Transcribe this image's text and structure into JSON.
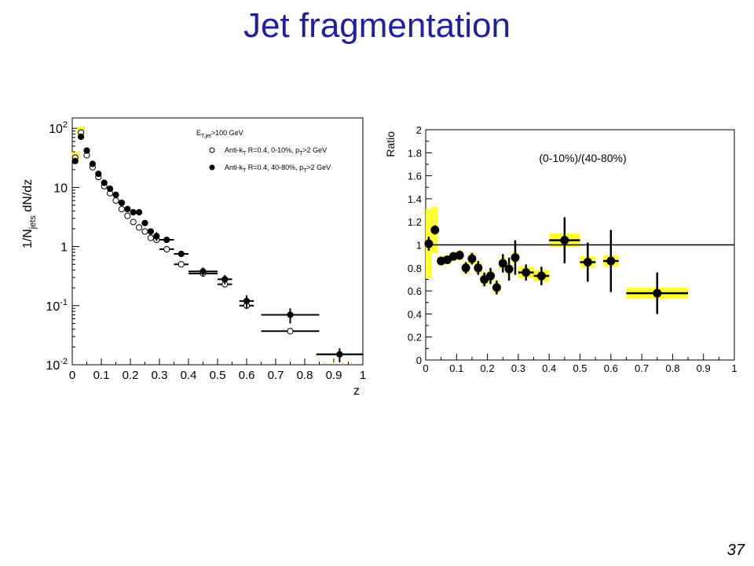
{
  "slide": {
    "title": "Jet fragmentation",
    "page_number": "37"
  },
  "colors": {
    "title": "#1f1fa0",
    "systematic_band": "#ffff33",
    "marker": "#000000"
  },
  "chart_data": [
    {
      "type": "scatter",
      "title": "",
      "xlabel": "z",
      "ylabel_parts": {
        "pre": "1/N",
        "sub": "jets",
        "post": " dN/dz"
      },
      "xlim": [
        0,
        1
      ],
      "ylim": [
        0.01,
        150
      ],
      "yscale": "log",
      "grid": false,
      "x_ticks": [
        0,
        0.1,
        0.2,
        0.3,
        0.4,
        0.5,
        0.6,
        0.7,
        0.8,
        0.9,
        1
      ],
      "x_tick_labels": [
        "0",
        "0.1",
        "0.2",
        "0.3",
        "0.4",
        "0.5",
        "0.6",
        "0.7",
        "0.8",
        "0.9",
        "1"
      ],
      "y_ticks": [
        {
          "value": 0.01,
          "base": "10",
          "exp": "-2"
        },
        {
          "value": 0.1,
          "base": "10",
          "exp": "-1"
        },
        {
          "value": 1,
          "base": "1",
          "exp": ""
        },
        {
          "value": 10,
          "base": "10",
          "exp": ""
        },
        {
          "value": 100,
          "base": "10",
          "exp": "2"
        }
      ],
      "legend": {
        "placement": "top-right",
        "header": {
          "pre": "E",
          "sub": "T,jet",
          "post": ">100 GeV"
        },
        "entries": [
          {
            "marker": "open-circle",
            "pre": "Anti-k",
            "sub1": "T",
            "mid": " R=0.4, 0-10%, p",
            "sub2": "T",
            "post": ">2 GeV"
          },
          {
            "marker": "filled-circle",
            "pre": "Anti-k",
            "sub1": "T",
            "mid": " R=0.4, 40-80%, p",
            "sub2": "T",
            "post": ">2 GeV"
          }
        ]
      },
      "series": [
        {
          "marker": "open-circle",
          "x": [
            0.01,
            0.03,
            0.05,
            0.07,
            0.09,
            0.11,
            0.13,
            0.15,
            0.17,
            0.19,
            0.21,
            0.23,
            0.25,
            0.27,
            0.29,
            0.325,
            0.375,
            0.45,
            0.525,
            0.6,
            0.75,
            0.92
          ],
          "xerr": [
            0.01,
            0.01,
            0.01,
            0.01,
            0.01,
            0.01,
            0.01,
            0.01,
            0.01,
            0.01,
            0.01,
            0.01,
            0.01,
            0.01,
            0.01,
            0.025,
            0.025,
            0.05,
            0.025,
            0.025,
            0.1,
            0.08
          ],
          "y": [
            32,
            85,
            35,
            22,
            15,
            10.5,
            8,
            6,
            4.3,
            3.3,
            2.6,
            2.1,
            1.8,
            1.4,
            1.3,
            0.9,
            0.5,
            0.35,
            0.23,
            0.1,
            0.037,
            0.015
          ]
        },
        {
          "marker": "filled-circle",
          "x": [
            0.01,
            0.03,
            0.05,
            0.07,
            0.09,
            0.11,
            0.13,
            0.15,
            0.17,
            0.19,
            0.21,
            0.23,
            0.25,
            0.27,
            0.29,
            0.325,
            0.375,
            0.45,
            0.525,
            0.6,
            0.75,
            0.92
          ],
          "xerr": [
            0.01,
            0.01,
            0.01,
            0.01,
            0.01,
            0.01,
            0.01,
            0.01,
            0.01,
            0.01,
            0.01,
            0.01,
            0.01,
            0.01,
            0.01,
            0.025,
            0.025,
            0.05,
            0.025,
            0.025,
            0.1,
            0.08
          ],
          "y": [
            28,
            72,
            42,
            25,
            17,
            12,
            9.5,
            7.5,
            5.5,
            4.3,
            3.8,
            3.8,
            2.5,
            1.8,
            1.5,
            1.3,
            0.75,
            0.38,
            0.28,
            0.12,
            0.07,
            0.015
          ],
          "yerr": [
            0,
            0,
            0,
            0,
            0,
            0,
            0,
            0,
            0,
            0,
            0,
            0,
            0,
            0,
            0.25,
            0,
            0,
            0.06,
            0.05,
            0.03,
            0.02,
            0.004
          ]
        }
      ]
    },
    {
      "type": "scatter",
      "title": "",
      "annotation": "(0-10%)/(40-80%)",
      "ylabel": "Ratio",
      "xlabel": "",
      "xlim": [
        0,
        1
      ],
      "ylim": [
        0,
        2
      ],
      "grid": false,
      "reference_line": 1,
      "x_ticks": [
        0,
        0.1,
        0.2,
        0.3,
        0.4,
        0.5,
        0.6,
        0.7,
        0.8,
        0.9,
        1
      ],
      "x_tick_labels": [
        "0",
        "0.1",
        "0.2",
        "0.3",
        "0.4",
        "0.5",
        "0.6",
        "0.7",
        "0.8",
        "0.9",
        "1"
      ],
      "y_ticks": [
        0,
        0.2,
        0.4,
        0.6,
        0.8,
        1,
        1.2,
        1.4,
        1.6,
        1.8,
        2
      ],
      "y_tick_labels": [
        "0",
        "0.2",
        "0.4",
        "0.6",
        "0.8",
        "1",
        "1.2",
        "1.4",
        "1.6",
        "1.8",
        "2"
      ],
      "x": [
        0.01,
        0.03,
        0.05,
        0.07,
        0.09,
        0.11,
        0.13,
        0.15,
        0.17,
        0.19,
        0.21,
        0.23,
        0.25,
        0.27,
        0.29,
        0.325,
        0.375,
        0.45,
        0.525,
        0.6,
        0.75
      ],
      "xerr": [
        0.01,
        0.01,
        0.01,
        0.01,
        0.01,
        0.01,
        0.01,
        0.01,
        0.01,
        0.01,
        0.01,
        0.01,
        0.01,
        0.01,
        0.01,
        0.025,
        0.025,
        0.05,
        0.025,
        0.025,
        0.1
      ],
      "y": [
        1.01,
        1.13,
        0.86,
        0.87,
        0.9,
        0.91,
        0.8,
        0.88,
        0.8,
        0.7,
        0.73,
        0.63,
        0.84,
        0.79,
        0.89,
        0.76,
        0.73,
        1.04,
        0.85,
        0.86,
        0.58
      ],
      "yerr": [
        0.06,
        0.04,
        0.03,
        0.03,
        0.03,
        0.04,
        0.05,
        0.05,
        0.06,
        0.06,
        0.07,
        0.06,
        0.08,
        0.1,
        0.15,
        0.07,
        0.08,
        0.2,
        0.17,
        0.27,
        0.18
      ],
      "syst_err": [
        0.3,
        0.2,
        0.04,
        0.04,
        0.04,
        0.04,
        0.05,
        0.05,
        0.05,
        0.05,
        0.05,
        0.05,
        0.05,
        0.05,
        0.05,
        0.05,
        0.05,
        0.06,
        0.05,
        0.05,
        0.05
      ]
    }
  ]
}
